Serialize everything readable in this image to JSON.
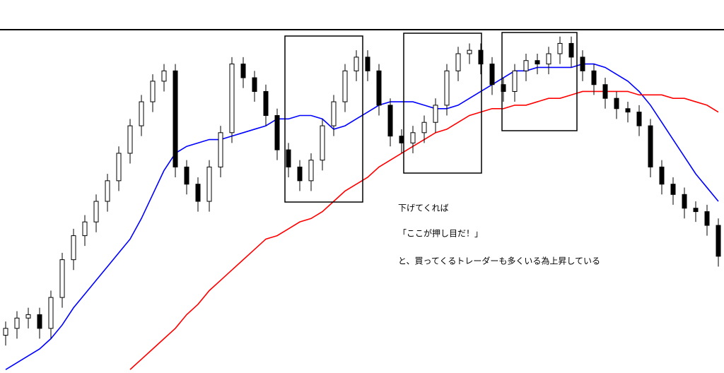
{
  "chart_data": {
    "type": "candlestick",
    "ylim": [
      0,
      100
    ],
    "up_color": "#ffffff",
    "down_color": "#000000",
    "open": [
      11,
      13,
      16,
      17,
      13,
      22,
      33,
      40,
      44,
      50,
      56,
      64,
      72,
      79,
      85,
      88,
      60,
      55,
      50,
      60,
      70,
      90,
      86,
      82,
      75,
      65,
      60,
      56,
      62,
      72,
      79,
      88,
      92,
      88,
      78,
      69,
      67,
      70,
      73,
      78,
      88,
      93,
      94,
      90,
      84,
      82,
      88,
      91,
      90,
      93,
      96,
      92,
      88,
      84,
      80,
      77,
      76,
      72,
      60,
      55,
      52,
      48,
      47,
      43
    ],
    "high": [
      15,
      18,
      19,
      19,
      24,
      35,
      42,
      46,
      52,
      58,
      66,
      74,
      81,
      87,
      90,
      90,
      62,
      57,
      62,
      72,
      92,
      92,
      88,
      84,
      77,
      67,
      62,
      64,
      74,
      81,
      90,
      94,
      94,
      90,
      80,
      71,
      72,
      75,
      80,
      90,
      95,
      96,
      96,
      92,
      86,
      90,
      93,
      93,
      95,
      98,
      98,
      94,
      90,
      86,
      82,
      79,
      78,
      74,
      62,
      57,
      54,
      50,
      49,
      45
    ],
    "low": [
      8,
      10,
      13,
      10,
      10,
      19,
      30,
      37,
      41,
      47,
      53,
      61,
      69,
      76,
      82,
      57,
      52,
      47,
      47,
      57,
      67,
      83,
      79,
      72,
      62,
      57,
      53,
      53,
      59,
      69,
      76,
      85,
      85,
      75,
      66,
      64,
      64,
      67,
      70,
      75,
      85,
      90,
      87,
      81,
      79,
      79,
      85,
      87,
      87,
      90,
      89,
      85,
      81,
      77,
      74,
      73,
      69,
      57,
      52,
      49,
      45,
      44,
      40,
      31
    ],
    "close": [
      13,
      16,
      17,
      13,
      22,
      33,
      40,
      44,
      50,
      56,
      64,
      72,
      79,
      85,
      88,
      60,
      55,
      50,
      60,
      70,
      90,
      86,
      82,
      75,
      65,
      60,
      56,
      62,
      72,
      79,
      88,
      92,
      88,
      78,
      69,
      67,
      70,
      73,
      78,
      88,
      93,
      94,
      90,
      84,
      82,
      88,
      91,
      90,
      93,
      96,
      92,
      88,
      84,
      80,
      77,
      76,
      72,
      60,
      55,
      52,
      48,
      47,
      43,
      34
    ],
    "lines": [
      {
        "color": "#0000ff",
        "values": [
          1,
          3,
          5,
          7,
          10,
          14,
          19,
          23,
          27,
          31,
          35,
          39,
          45,
          52,
          59,
          64,
          66,
          67,
          68,
          68,
          69,
          70,
          71,
          72,
          74,
          74,
          75,
          75,
          74,
          71,
          72,
          74,
          76,
          78,
          79,
          79,
          79,
          78,
          77,
          77,
          78,
          80,
          82,
          84,
          86,
          88,
          88,
          89,
          89,
          89,
          89,
          90,
          90,
          89,
          87,
          85,
          82,
          78,
          73,
          68,
          63,
          58,
          54,
          50
        ]
      },
      {
        "color": "#ff0000",
        "values": [
          null,
          null,
          null,
          null,
          null,
          null,
          null,
          null,
          null,
          null,
          null,
          1,
          4,
          7,
          10,
          13,
          17,
          20,
          24,
          27,
          30,
          33,
          36,
          39,
          40,
          42,
          44,
          45,
          47,
          50,
          53,
          55,
          57,
          60,
          62,
          64,
          66,
          68,
          70,
          71,
          73,
          75,
          76,
          77,
          77,
          78,
          78,
          79,
          80,
          80,
          81,
          82,
          82,
          82,
          82,
          82,
          81,
          81,
          81,
          80,
          80,
          79,
          78,
          76
        ]
      }
    ],
    "annotations": [
      "下げてくれば",
      "「ここが押し目だ！」",
      "と、買ってくるトレーダーも多くいる為上昇している"
    ]
  }
}
